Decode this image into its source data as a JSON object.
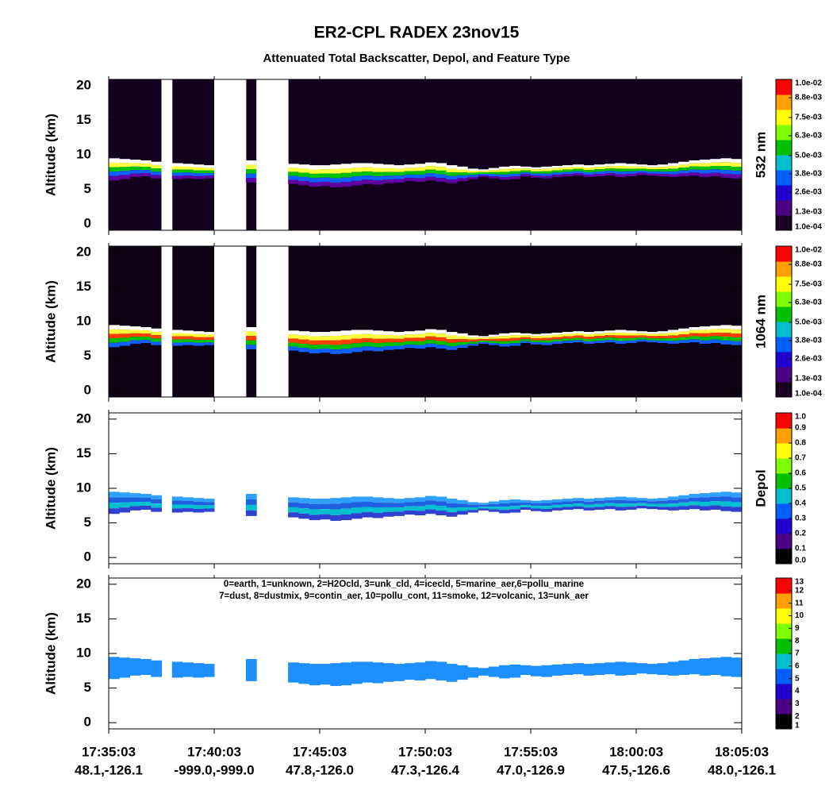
{
  "title": "ER2-CPL RADEX 23nov15",
  "subtitle": "Attenuated Total Backscatter, Depol, and Feature Type",
  "xtick_labels": [
    "17:35:03",
    "17:40:03",
    "17:45:03",
    "17:50:03",
    "17:55:03",
    "18:00:03",
    "18:05:03"
  ],
  "xtick_sublabels": [
    "48.1,-126.1",
    "-999.0,-999.0",
    "47.8,-126.0",
    "47.3,-126.4",
    "47.0,-126.9",
    "47.5,-126.6",
    "48.0,-126.1"
  ],
  "cloud_layer": {
    "top": [
      9.5,
      9.4,
      9.3,
      9.2,
      9.0,
      null,
      8.8,
      8.7,
      8.6,
      8.5,
      null,
      null,
      null,
      9.2,
      null,
      null,
      null,
      8.7,
      8.6,
      8.5,
      8.5,
      8.6,
      8.7,
      8.8,
      8.8,
      8.7,
      8.6,
      8.5,
      8.6,
      8.7,
      8.9,
      8.8,
      8.5,
      8.3,
      8.0,
      7.9,
      8.1,
      8.3,
      8.4,
      8.3,
      8.2,
      8.3,
      8.4,
      8.5,
      8.6,
      8.5,
      8.6,
      8.7,
      8.8,
      8.7,
      8.6,
      8.5,
      8.6,
      8.8,
      9.0,
      9.2,
      9.3,
      9.4,
      9.5,
      9.4
    ],
    "base": [
      6.3,
      6.5,
      6.8,
      6.9,
      6.6,
      null,
      6.5,
      6.6,
      6.5,
      6.6,
      null,
      null,
      null,
      6.0,
      null,
      null,
      null,
      5.8,
      5.6,
      5.4,
      5.5,
      5.3,
      5.4,
      5.6,
      5.8,
      5.7,
      5.9,
      6.0,
      6.2,
      6.1,
      6.3,
      6.1,
      5.9,
      6.2,
      6.5,
      6.8,
      6.6,
      6.4,
      6.5,
      6.9,
      6.7,
      6.6,
      6.8,
      6.9,
      7.0,
      6.8,
      6.9,
      7.0,
      6.8,
      6.9,
      7.1,
      7.0,
      6.9,
      6.8,
      6.9,
      7.0,
      6.8,
      6.9,
      6.7,
      6.6
    ]
  },
  "chart_data": [
    {
      "type": "curtain",
      "ylabel": "Altitude (km)",
      "ylim": [
        -0.9,
        20.9
      ],
      "yticks": [
        0,
        5,
        10,
        15,
        20
      ],
      "background": "#12001c",
      "gap_color": "#ffffff",
      "layer_colors": [
        "#ffffff",
        "#ffff40",
        "#00c000",
        "#1060ff",
        "#6000a0"
      ],
      "colorbar": {
        "label": "532 nm",
        "clim": [
          0.0001,
          0.01
        ],
        "ticks": [
          {
            "value": 0.0001,
            "label": "1.0e-04"
          },
          {
            "value": 0.0013,
            "label": "1.3e-03"
          },
          {
            "value": 0.0026,
            "label": "2.6e-03"
          },
          {
            "value": 0.0038,
            "label": "3.8e-03"
          },
          {
            "value": 0.005,
            "label": "5.0e-03"
          },
          {
            "value": 0.0063,
            "label": "6.3e-03"
          },
          {
            "value": 0.0075,
            "label": "7.5e-03"
          },
          {
            "value": 0.0088,
            "label": "8.8e-03"
          },
          {
            "value": 0.01,
            "label": "1.0e-02"
          }
        ],
        "colors": [
          "#1a0020",
          "#4b0082",
          "#2000d0",
          "#0060ff",
          "#00c0d0",
          "#00c000",
          "#80ff00",
          "#ffff00",
          "#ffa000",
          "#ff0000"
        ]
      }
    },
    {
      "type": "curtain",
      "ylabel": "Altitude (km)",
      "ylim": [
        -0.9,
        20.9
      ],
      "yticks": [
        0,
        5,
        10,
        15,
        20
      ],
      "background": "#0c0012",
      "gap_color": "#ffffff",
      "layer_colors": [
        "#ffffff",
        "#ffff40",
        "#ff4000",
        "#00c000",
        "#1060ff"
      ],
      "colorbar": {
        "label": "1064 nm",
        "clim": [
          0.0001,
          0.01
        ],
        "ticks": [
          {
            "value": 0.0001,
            "label": "1.0e-04"
          },
          {
            "value": 0.0013,
            "label": "1.3e-03"
          },
          {
            "value": 0.0026,
            "label": "2.6e-03"
          },
          {
            "value": 0.0038,
            "label": "3.8e-03"
          },
          {
            "value": 0.005,
            "label": "5.0e-03"
          },
          {
            "value": 0.0063,
            "label": "6.3e-03"
          },
          {
            "value": 0.0075,
            "label": "7.5e-03"
          },
          {
            "value": 0.0088,
            "label": "8.8e-03"
          },
          {
            "value": 0.01,
            "label": "1.0e-02"
          }
        ],
        "colors": [
          "#1a0020",
          "#4b0082",
          "#2000d0",
          "#0060ff",
          "#00c0d0",
          "#00c000",
          "#80ff00",
          "#ffff00",
          "#ffa000",
          "#ff0000"
        ]
      }
    },
    {
      "type": "curtain",
      "ylabel": "Altitude (km)",
      "ylim": [
        -0.9,
        20.9
      ],
      "yticks": [
        0,
        5,
        10,
        15,
        20
      ],
      "background": "#ffffff",
      "layer_colors": [
        "#30a0ff",
        "#2060e0",
        "#00c0d0",
        "#3040d0"
      ],
      "colorbar": {
        "label": "Depol",
        "clim": [
          0,
          1
        ],
        "ticks": [
          {
            "value": 0,
            "label": "0.0"
          },
          0.1,
          0.2,
          0.3,
          0.4,
          0.5,
          0.6,
          0.7,
          0.8,
          0.9,
          {
            "value": 1,
            "label": "1.0"
          }
        ],
        "colors": [
          "#000000",
          "#4b0082",
          "#2000d0",
          "#0060ff",
          "#00c0d0",
          "#00c000",
          "#80ff00",
          "#ffff00",
          "#ffa000",
          "#ff0000"
        ]
      }
    },
    {
      "type": "curtain",
      "ylabel": "Altitude (km)",
      "ylim": [
        -0.9,
        20.9
      ],
      "yticks": [
        0,
        5,
        10,
        15,
        20
      ],
      "background": "#ffffff",
      "layer_colors": [
        "#1e8fff"
      ],
      "annotation": [
        "0=earth, 1=unknown, 2=H2Ocld, 3=unk_cld, 4=icecld, 5=marine_aer,6=pollu_marine",
        "7=dust, 8=dustmix, 9=contin_aer, 10=pollu_cont, 11=smoke, 12=volcanic, 13=unk_aer"
      ],
      "colorbar": {
        "clim": [
          1,
          13
        ],
        "ticks": [
          1,
          2,
          3,
          4,
          5,
          6,
          7,
          8,
          9,
          10,
          11,
          12,
          13
        ],
        "colors": [
          "#000000",
          "#4b0082",
          "#2000d0",
          "#0060ff",
          "#00c0d0",
          "#00c000",
          "#80ff00",
          "#ffff00",
          "#ffa000",
          "#ff0000"
        ]
      }
    }
  ]
}
